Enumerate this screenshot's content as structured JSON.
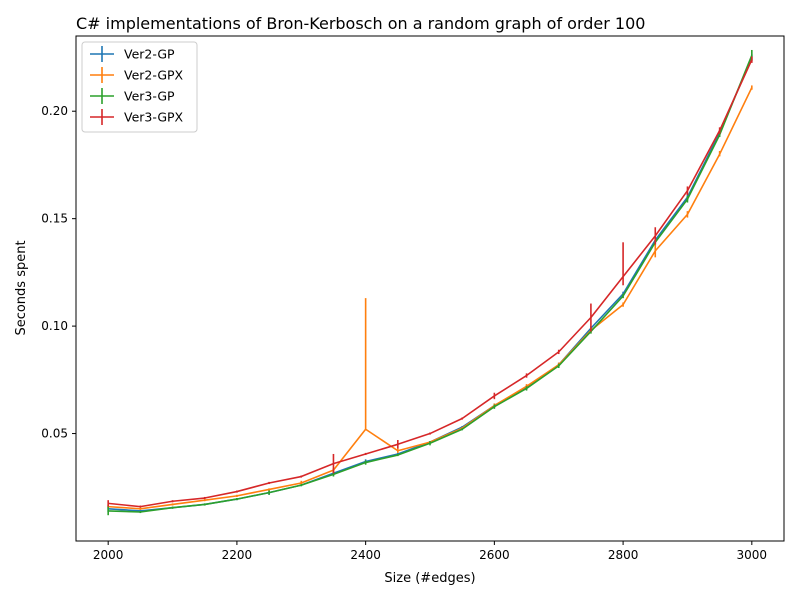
{
  "chart_data": {
    "type": "line",
    "title": "C# implementations of Bron-Kerbosch on a random graph of order 100",
    "xlabel": "Size (#edges)",
    "ylabel": "Seconds spent",
    "xlim": [
      1950,
      3050
    ],
    "ylim": [
      0.0,
      0.235
    ],
    "x_ticks": [
      2000,
      2200,
      2400,
      2600,
      2800,
      3000
    ],
    "y_ticks": [
      0.05,
      0.1,
      0.15,
      0.2
    ],
    "x_tick_labels": [
      "2000",
      "2200",
      "2400",
      "2600",
      "2800",
      "3000"
    ],
    "y_tick_labels": [
      "0.05",
      "0.10",
      "0.15",
      "0.20"
    ],
    "grid": false,
    "legend_position": "top-left",
    "x": [
      2000,
      2050,
      2100,
      2150,
      2200,
      2250,
      2300,
      2350,
      2400,
      2450,
      2500,
      2550,
      2600,
      2650,
      2700,
      2750,
      2800,
      2850,
      2900,
      2950,
      3000
    ],
    "series": [
      {
        "name": "Ver2-GP",
        "color": "#1f77b4",
        "values": [
          0.015,
          0.014,
          0.0155,
          0.017,
          0.0195,
          0.0225,
          0.026,
          0.0315,
          0.037,
          0.0405,
          0.046,
          0.053,
          0.063,
          0.0715,
          0.082,
          0.099,
          0.115,
          0.14,
          0.16,
          0.19,
          0.225
        ],
        "err_low": [
          0.0015,
          0.0005,
          0.0005,
          0.0005,
          0.0005,
          0.001,
          0.0005,
          0.001,
          0.001,
          0.0005,
          0.0005,
          0.0005,
          0.001,
          0.001,
          0.001,
          0.001,
          0.001,
          0.001,
          0.0015,
          0.001,
          0.0015
        ],
        "err_high": [
          0.0015,
          0.0005,
          0.0005,
          0.0005,
          0.0005,
          0.001,
          0.0005,
          0.001,
          0.001,
          0.0005,
          0.0005,
          0.0005,
          0.001,
          0.001,
          0.001,
          0.001,
          0.001,
          0.001,
          0.0015,
          0.001,
          0.0015
        ]
      },
      {
        "name": "Ver2-GPX",
        "color": "#ff7f0e",
        "values": [
          0.016,
          0.015,
          0.017,
          0.019,
          0.021,
          0.024,
          0.027,
          0.033,
          0.052,
          0.042,
          0.046,
          0.0525,
          0.063,
          0.072,
          0.082,
          0.098,
          0.11,
          0.135,
          0.152,
          0.18,
          0.211
        ],
        "err_low": [
          0.001,
          0.0005,
          0.0005,
          0.0005,
          0.0005,
          0.0005,
          0.001,
          0.001,
          0.0,
          0.001,
          0.0005,
          0.0005,
          0.001,
          0.001,
          0.001,
          0.001,
          0.001,
          0.003,
          0.0015,
          0.001,
          0.001
        ],
        "err_high": [
          0.001,
          0.0005,
          0.0005,
          0.0005,
          0.0005,
          0.0005,
          0.001,
          0.001,
          0.061,
          0.001,
          0.0005,
          0.0005,
          0.001,
          0.001,
          0.001,
          0.001,
          0.001,
          0.003,
          0.0015,
          0.0015,
          0.001
        ]
      },
      {
        "name": "Ver3-GP",
        "color": "#2ca02c",
        "values": [
          0.014,
          0.0135,
          0.0155,
          0.017,
          0.0195,
          0.0225,
          0.026,
          0.031,
          0.0365,
          0.04,
          0.0455,
          0.052,
          0.0625,
          0.071,
          0.0815,
          0.0975,
          0.114,
          0.139,
          0.159,
          0.189,
          0.226
        ],
        "err_low": [
          0.002,
          0.0005,
          0.0005,
          0.0005,
          0.0005,
          0.001,
          0.0005,
          0.001,
          0.001,
          0.0005,
          0.001,
          0.0005,
          0.001,
          0.001,
          0.001,
          0.001,
          0.001,
          0.001,
          0.0015,
          0.001,
          0.0025
        ],
        "err_high": [
          0.002,
          0.0005,
          0.0005,
          0.0005,
          0.0005,
          0.001,
          0.0005,
          0.001,
          0.001,
          0.0005,
          0.001,
          0.0005,
          0.001,
          0.001,
          0.001,
          0.001,
          0.001,
          0.001,
          0.0015,
          0.001,
          0.0025
        ]
      },
      {
        "name": "Ver3-GPX",
        "color": "#d62728",
        "values": [
          0.0175,
          0.016,
          0.0185,
          0.02,
          0.023,
          0.027,
          0.03,
          0.036,
          0.0405,
          0.045,
          0.05,
          0.057,
          0.0675,
          0.077,
          0.088,
          0.104,
          0.123,
          0.142,
          0.163,
          0.191,
          0.224
        ],
        "err_low": [
          0.0015,
          0.0005,
          0.0005,
          0.0005,
          0.0005,
          0.0005,
          0.0005,
          0.0045,
          0.0005,
          0.002,
          0.0005,
          0.0005,
          0.0015,
          0.001,
          0.001,
          0.0065,
          0.004,
          0.004,
          0.002,
          0.0015,
          0.0015
        ],
        "err_high": [
          0.0015,
          0.0005,
          0.0005,
          0.0005,
          0.0005,
          0.0005,
          0.0005,
          0.0045,
          0.0005,
          0.002,
          0.0005,
          0.0005,
          0.0015,
          0.001,
          0.001,
          0.0065,
          0.016,
          0.004,
          0.002,
          0.0015,
          0.0015
        ]
      }
    ]
  }
}
